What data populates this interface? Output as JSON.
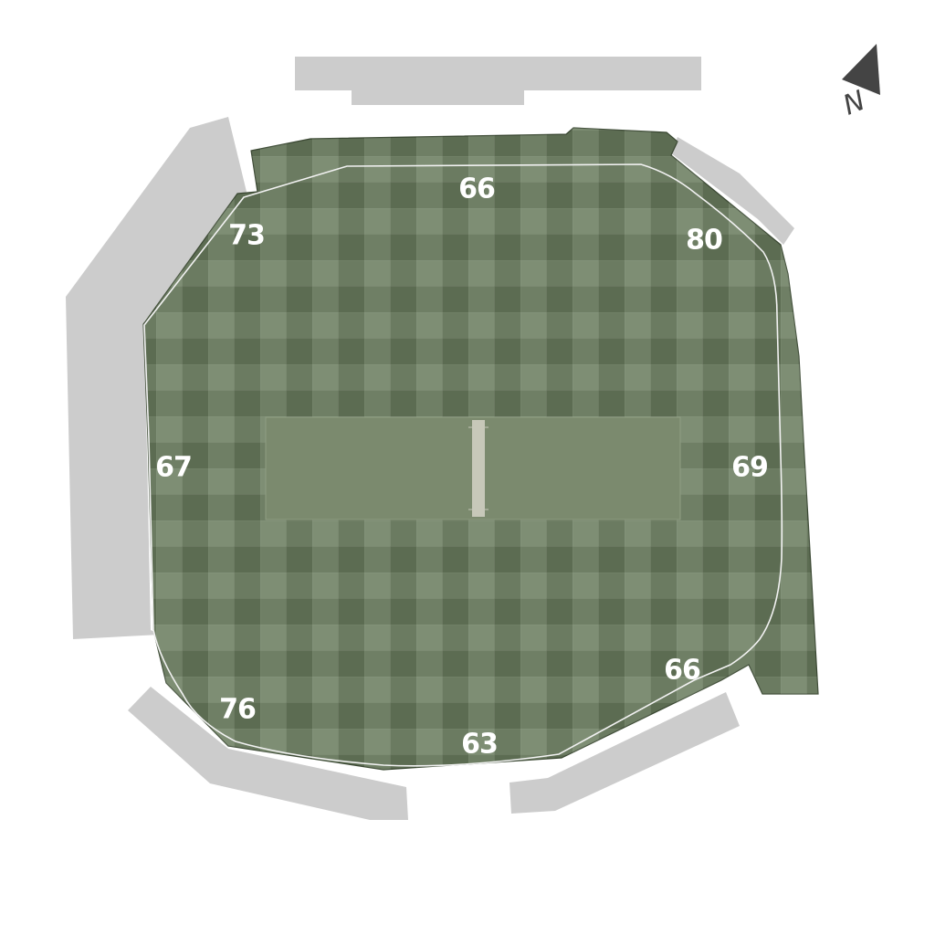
{
  "colors": {
    "background": "#ffffff",
    "stand": "#cccccc",
    "grass_light": "#879879",
    "grass_dark": "#6a7d5e",
    "grass_edge": "#3f4d37",
    "boundary_rope": "#f2f2f2",
    "square": "#7b8a6e",
    "pitch": "#c7c8b9",
    "label": "#ffffff",
    "north_arrow": "#444444"
  },
  "compass": {
    "letter": "N",
    "icon": "north-arrow-icon"
  },
  "boundary_distances": {
    "north": "66",
    "north_west": "73",
    "north_east": "80",
    "west": "67",
    "east": "69",
    "south_east": "66",
    "south_west": "76",
    "south": "63"
  }
}
